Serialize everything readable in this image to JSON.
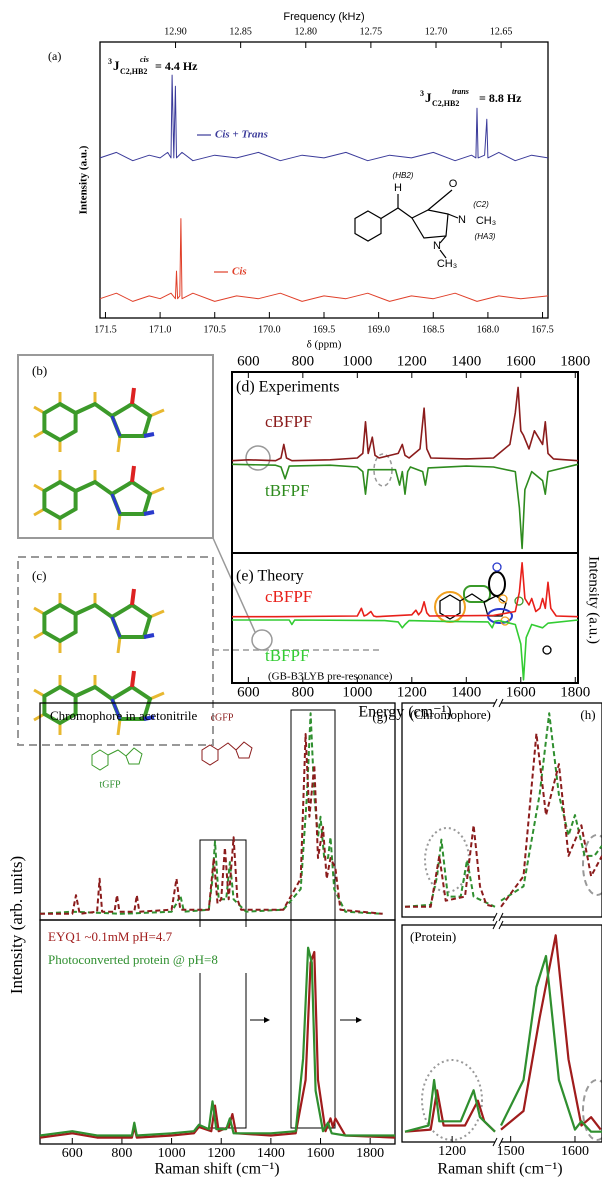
{
  "structures": [
    {
      "label": "(b)"
    },
    {
      "label": "(c)"
    }
  ],
  "chart_data": [
    {
      "type": "line",
      "label": "(a)",
      "x2label": "Frequency (kHz)",
      "xlabel": "δ (ppm)",
      "ylabel": "Intensity (a.u.)",
      "xlim": [
        171.55,
        167.45
      ],
      "xticks": [
        171.5,
        {
          "value": 171,
          "label": "171.0"
        },
        170.5,
        {
          "value": 170,
          "label": "170.0"
        },
        169.5,
        {
          "value": 169,
          "label": "169.0"
        },
        168.5,
        {
          "value": 168,
          "label": "168.0"
        },
        167.5
      ],
      "x2lim": [
        12.958,
        12.614
      ],
      "x2ticks": [
        {
          "value": 12.9,
          "label": "12.90"
        },
        12.85,
        {
          "value": 12.8,
          "label": "12.80"
        },
        12.75,
        {
          "value": 12.7,
          "label": "12.70"
        },
        12.65
      ],
      "ylim": [
        0,
        10
      ],
      "series": [
        {
          "name": "Cis + Trans",
          "color": "#3b3b9a",
          "x": [
            171.55,
            171.4,
            171.25,
            171.1,
            171.0,
            170.93,
            170.9,
            170.89,
            170.875,
            170.86,
            170.85,
            170.8,
            170.7,
            170.5,
            170.3,
            170.1,
            169.9,
            169.7,
            169.5,
            169.3,
            169.1,
            168.9,
            168.7,
            168.5,
            168.3,
            168.15,
            168.11,
            168.1,
            168.09,
            168.03,
            168.01,
            168.0,
            167.9,
            167.75,
            167.6,
            167.45
          ],
          "values": [
            5.8,
            6.0,
            5.7,
            5.9,
            5.8,
            6.0,
            5.8,
            8.8,
            5.8,
            8.4,
            5.8,
            6.0,
            5.7,
            5.9,
            5.8,
            6.0,
            5.7,
            5.9,
            5.8,
            6.0,
            5.7,
            5.9,
            5.8,
            6.0,
            5.7,
            5.9,
            5.8,
            7.6,
            5.8,
            5.9,
            7.2,
            5.8,
            6.0,
            5.7,
            5.9,
            5.8
          ]
        },
        {
          "name": "Cis",
          "color": "#e0402a",
          "x": [
            171.55,
            171.4,
            171.25,
            171.1,
            171.0,
            170.9,
            170.86,
            170.85,
            170.84,
            170.82,
            170.81,
            170.8,
            170.7,
            170.5,
            170.3,
            170.1,
            169.9,
            169.7,
            169.5,
            169.3,
            169.1,
            168.9,
            168.7,
            168.5,
            168.3,
            168.1,
            167.9,
            167.7,
            167.45
          ],
          "values": [
            0.7,
            0.9,
            0.6,
            0.8,
            0.7,
            0.9,
            0.7,
            1.7,
            0.7,
            0.8,
            3.6,
            0.7,
            0.9,
            0.6,
            0.8,
            0.7,
            0.9,
            0.6,
            0.8,
            0.7,
            0.9,
            0.6,
            0.8,
            0.7,
            0.9,
            0.6,
            0.8,
            0.7,
            0.8
          ]
        }
      ],
      "j_labels": [
        {
          "pre": "3",
          "main": "J",
          "sub": "C2,HB2",
          "sup": "cis",
          "text": "= 4.4 Hz"
        },
        {
          "pre": "3",
          "main": "J",
          "sub": "C2,HB2",
          "sup": "trans",
          "text": "= 8.8 Hz"
        }
      ],
      "annotations": [
        "H",
        "O",
        "(HB2)",
        "(C2)",
        "N",
        "CH₃",
        "(HA3)",
        "N",
        "CH₃"
      ]
    },
    {
      "type": "line",
      "label": "(d) Experiments",
      "ylabel": "Intensity (a.u.)",
      "xlim": [
        540,
        1810
      ],
      "xticks": [
        600,
        800,
        1000,
        1200,
        1400,
        1600,
        1800
      ],
      "ylim": [
        -1,
        1
      ],
      "series": [
        {
          "name": "cBFPF",
          "color": "#8b1c1c",
          "x": [
            540,
            600,
            700,
            720,
            730,
            740,
            760,
            900,
            1000,
            1020,
            1030,
            1040,
            1055,
            1065,
            1080,
            1150,
            1165,
            1175,
            1190,
            1230,
            1245,
            1255,
            1270,
            1400,
            1500,
            1560,
            1580,
            1590,
            1600,
            1610,
            1630,
            1650,
            1680,
            1690,
            1700,
            1720,
            1810
          ],
          "values": [
            0.02,
            0.03,
            0.02,
            0.05,
            0.2,
            0.05,
            0.02,
            0.03,
            0.05,
            0.1,
            0.45,
            0.1,
            0.28,
            0.08,
            0.05,
            0.1,
            0.2,
            0.08,
            0.05,
            0.15,
            0.6,
            0.15,
            0.05,
            0.04,
            0.05,
            0.2,
            0.55,
            0.83,
            0.35,
            0.3,
            0.15,
            0.35,
            0.2,
            0.45,
            0.1,
            0.04,
            0.02
          ]
        },
        {
          "name": "tBFPF",
          "color": "#2e8b1e",
          "x": [
            540,
            700,
            720,
            735,
            750,
            900,
            1000,
            1020,
            1030,
            1040,
            1140,
            1155,
            1165,
            1175,
            1185,
            1195,
            1240,
            1250,
            1260,
            1400,
            1500,
            1580,
            1595,
            1605,
            1615,
            1640,
            1680,
            1690,
            1700,
            1810
          ],
          "values": [
            -0.02,
            -0.03,
            -0.05,
            -0.18,
            -0.04,
            -0.03,
            -0.05,
            -0.1,
            -0.35,
            -0.08,
            -0.08,
            -0.25,
            -0.1,
            -0.35,
            -0.1,
            -0.05,
            -0.1,
            -0.25,
            -0.06,
            -0.04,
            -0.05,
            -0.1,
            -0.5,
            -0.95,
            -0.3,
            -0.1,
            -0.2,
            -0.35,
            -0.1,
            -0.02
          ]
        }
      ]
    },
    {
      "type": "line",
      "label": "(e) Theory",
      "note": "(GB-B3LYB pre-resonance)",
      "xlabel": "Energy (cm⁻¹)",
      "xlim": [
        540,
        1810
      ],
      "xticks": [
        600,
        800,
        1000,
        1200,
        1400,
        1600,
        1800
      ],
      "ylim": [
        -1,
        1
      ],
      "series": [
        {
          "name": "cBFPF",
          "color": "#e8201a",
          "x": [
            540,
            700,
            1000,
            1015,
            1025,
            1035,
            1050,
            1060,
            1070,
            1200,
            1215,
            1225,
            1235,
            1245,
            1255,
            1265,
            1500,
            1580,
            1595,
            1605,
            1615,
            1630,
            1640,
            1655,
            1670,
            1680,
            1690,
            1700,
            1710,
            1730,
            1810
          ],
          "values": [
            0.02,
            0.02,
            0.03,
            0.15,
            0.03,
            0.05,
            0.1,
            0.03,
            0.02,
            0.05,
            0.12,
            0.05,
            0.1,
            0.25,
            0.08,
            0.03,
            0.04,
            0.1,
            0.4,
            0.85,
            0.3,
            0.2,
            0.3,
            0.1,
            0.15,
            0.3,
            0.15,
            0.55,
            0.15,
            0.03,
            0.02
          ]
        },
        {
          "name": "tBFPF",
          "color": "#33cc33",
          "x": [
            540,
            750,
            760,
            770,
            1100,
            1150,
            1165,
            1175,
            1190,
            1300,
            1480,
            1495,
            1505,
            1520,
            1580,
            1600,
            1610,
            1620,
            1640,
            1680,
            1700,
            1810
          ],
          "values": [
            -0.03,
            -0.03,
            -0.1,
            -0.03,
            -0.04,
            -0.06,
            -0.15,
            -0.1,
            -0.04,
            -0.05,
            -0.06,
            -0.15,
            -0.05,
            -0.04,
            -0.1,
            -0.4,
            -0.95,
            -0.3,
            -0.1,
            -0.15,
            -0.08,
            -0.03
          ]
        }
      ]
    },
    {
      "type": "line",
      "label": "(g)",
      "title": "Chromophore in acetonitrile",
      "annotations": [
        "tGFP",
        "cGFP"
      ],
      "xlim": [
        470,
        1900
      ],
      "ylim": [
        0,
        1.05
      ],
      "series": [
        {
          "color": "#2f8f2f",
          "dashed": true,
          "x": [
            470,
            600,
            800,
            1000,
            1020,
            1035,
            1050,
            1150,
            1165,
            1175,
            1190,
            1220,
            1235,
            1250,
            1300,
            1450,
            1520,
            1545,
            1560,
            1575,
            1590,
            1600,
            1615,
            1630,
            1640,
            1655,
            1700,
            1850
          ],
          "values": [
            0.03,
            0.04,
            0.03,
            0.04,
            0.08,
            0.12,
            0.04,
            0.05,
            0.2,
            0.38,
            0.1,
            0.1,
            0.28,
            0.1,
            0.04,
            0.05,
            0.15,
            0.6,
            1.0,
            0.6,
            0.4,
            0.5,
            0.3,
            0.3,
            0.4,
            0.15,
            0.04,
            0.03
          ]
        },
        {
          "color": "#8b1c1c",
          "dashed": true,
          "x": [
            470,
            600,
            615,
            630,
            700,
            710,
            720,
            770,
            780,
            790,
            850,
            860,
            870,
            1000,
            1020,
            1035,
            1150,
            1170,
            1185,
            1200,
            1215,
            1230,
            1250,
            1265,
            1280,
            1450,
            1520,
            1540,
            1555,
            1575,
            1590,
            1610,
            1625,
            1640,
            1660,
            1680,
            1850
          ],
          "values": [
            0.03,
            0.03,
            0.12,
            0.03,
            0.04,
            0.2,
            0.04,
            0.04,
            0.12,
            0.04,
            0.04,
            0.12,
            0.04,
            0.05,
            0.2,
            0.05,
            0.05,
            0.3,
            0.08,
            0.1,
            0.35,
            0.1,
            0.4,
            0.1,
            0.05,
            0.05,
            0.2,
            0.9,
            0.5,
            0.75,
            0.3,
            0.45,
            0.2,
            0.3,
            0.25,
            0.05,
            0.03
          ]
        }
      ]
    },
    {
      "type": "line",
      "ylabel": "Intensity (arb. units)",
      "xlabel": "Raman shift (cm⁻¹)",
      "xlim": [
        470,
        1900
      ],
      "xticks": [
        600,
        800,
        1000,
        1200,
        1400,
        1600,
        1800
      ],
      "ylim": [
        0,
        1.05
      ],
      "series": [
        {
          "name": "EYQ1 ~0.1mM pH=4.7",
          "color": "#a01c1c",
          "x": [
            470,
            600,
            700,
            840,
            850,
            860,
            1000,
            1090,
            1110,
            1160,
            1175,
            1190,
            1230,
            1245,
            1260,
            1400,
            1500,
            1540,
            1560,
            1575,
            1590,
            1620,
            1640,
            1650,
            1660,
            1700,
            1900
          ],
          "values": [
            0.03,
            0.05,
            0.03,
            0.03,
            0.08,
            0.03,
            0.04,
            0.05,
            0.08,
            0.06,
            0.18,
            0.06,
            0.08,
            0.14,
            0.05,
            0.04,
            0.05,
            0.3,
            0.85,
            0.9,
            0.3,
            0.06,
            0.12,
            0.08,
            0.12,
            0.04,
            0.03
          ]
        },
        {
          "name": "Photoconverted protein @ pH=8",
          "color": "#2f8f2f",
          "x": [
            470,
            600,
            700,
            840,
            850,
            860,
            1000,
            1090,
            1110,
            1150,
            1165,
            1180,
            1220,
            1235,
            1250,
            1400,
            1500,
            1530,
            1550,
            1565,
            1580,
            1610,
            1630,
            1645,
            1700,
            1900
          ],
          "values": [
            0.04,
            0.06,
            0.04,
            0.04,
            0.1,
            0.04,
            0.05,
            0.06,
            0.09,
            0.07,
            0.2,
            0.07,
            0.07,
            0.12,
            0.05,
            0.05,
            0.06,
            0.4,
            0.92,
            0.85,
            0.25,
            0.06,
            0.1,
            0.05,
            0.04,
            0.04
          ]
        }
      ]
    },
    {
      "type": "line",
      "label": "(h)",
      "title": "(Chromophore)",
      "xsegments": [
        [
          1090,
          1300
        ],
        [
          1485,
          1642
        ]
      ],
      "ylim": [
        0,
        1.05
      ],
      "series": [
        {
          "color": "#2f8f2f",
          "dashed": true,
          "x": [
            1090,
            1150,
            1165,
            1175,
            1190,
            1220,
            1235,
            1250,
            1300,
            1485,
            1520,
            1545,
            1560,
            1575,
            1590,
            1600,
            1615,
            1630,
            1642
          ],
          "values": [
            0.05,
            0.06,
            0.2,
            0.38,
            0.1,
            0.1,
            0.28,
            0.1,
            0.05,
            0.08,
            0.15,
            0.6,
            1.0,
            0.6,
            0.4,
            0.5,
            0.3,
            0.3,
            0.35
          ]
        },
        {
          "color": "#8b1c1c",
          "dashed": true,
          "x": [
            1090,
            1150,
            1170,
            1185,
            1230,
            1250,
            1265,
            1280,
            1300,
            1485,
            1520,
            1540,
            1555,
            1575,
            1590,
            1610,
            1625,
            1642
          ],
          "values": [
            0.05,
            0.05,
            0.3,
            0.08,
            0.1,
            0.45,
            0.15,
            0.06,
            0.05,
            0.05,
            0.2,
            0.9,
            0.5,
            0.75,
            0.3,
            0.45,
            0.2,
            0.3
          ]
        }
      ]
    },
    {
      "type": "line",
      "title": "(Protein)",
      "xlabel": "Raman shift (cm⁻¹)",
      "xsegments": [
        [
          1090,
          1300
        ],
        [
          1485,
          1642
        ]
      ],
      "xticks": [
        1200,
        1500,
        1600
      ],
      "ylim": [
        0,
        1.05
      ],
      "series": [
        {
          "color": "#a01c1c",
          "x": [
            1090,
            1150,
            1165,
            1180,
            1230,
            1260,
            1275,
            1300,
            1485,
            1520,
            1545,
            1570,
            1590,
            1610,
            1625,
            1640
          ],
          "values": [
            0.05,
            0.06,
            0.25,
            0.08,
            0.08,
            0.2,
            0.1,
            0.05,
            0.06,
            0.15,
            0.6,
            1.0,
            0.4,
            0.08,
            0.12,
            0.06
          ]
        },
        {
          "color": "#2f8f2f",
          "x": [
            1090,
            1145,
            1158,
            1170,
            1220,
            1250,
            1265,
            1300,
            1485,
            1520,
            1540,
            1555,
            1575,
            1600,
            1610,
            1625,
            1642
          ],
          "values": [
            0.05,
            0.08,
            0.3,
            0.1,
            0.1,
            0.25,
            0.12,
            0.05,
            0.08,
            0.3,
            0.75,
            0.9,
            0.3,
            0.06,
            0.1,
            0.05,
            0.05
          ]
        }
      ]
    }
  ]
}
